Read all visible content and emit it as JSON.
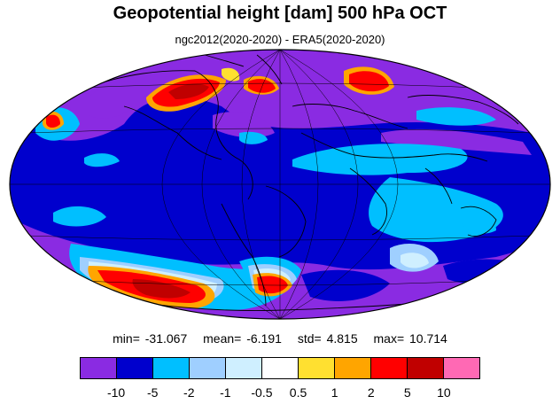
{
  "title": "Geopotential height [dam] 500 hPa OCT",
  "subtitle": "ngc2012(2020-2020) - ERA5(2020-2020)",
  "stats": {
    "min": "min= -31.067",
    "mean": "mean=  -6.191",
    "std": "std=   4.815",
    "max": "max=  10.714"
  },
  "colorbar": {
    "colors": [
      "#8a2be2",
      "#0000cd",
      "#00bfff",
      "#9fcfff",
      "#cfefff",
      "#ffffff",
      "#ffe030",
      "#ffa500",
      "#ff0000",
      "#c00000",
      "#ff69b4"
    ],
    "labels": [
      "-10",
      "-5",
      "-2",
      "-1",
      "-0.5",
      "0.5",
      "1",
      "2",
      "5",
      "10"
    ]
  },
  "map": {
    "projection": "Mollweide",
    "background_color": "#0000cd",
    "field_colors": {
      "purple": "#8a2be2",
      "blue": "#0000cd",
      "cyan": "#00bfff",
      "lightblue": "#9fcfff",
      "paleblue": "#cfefff",
      "white": "#ffffff",
      "yellow": "#ffe030",
      "orange": "#ffa500",
      "red": "#ff0000",
      "darkred": "#c00000"
    }
  }
}
